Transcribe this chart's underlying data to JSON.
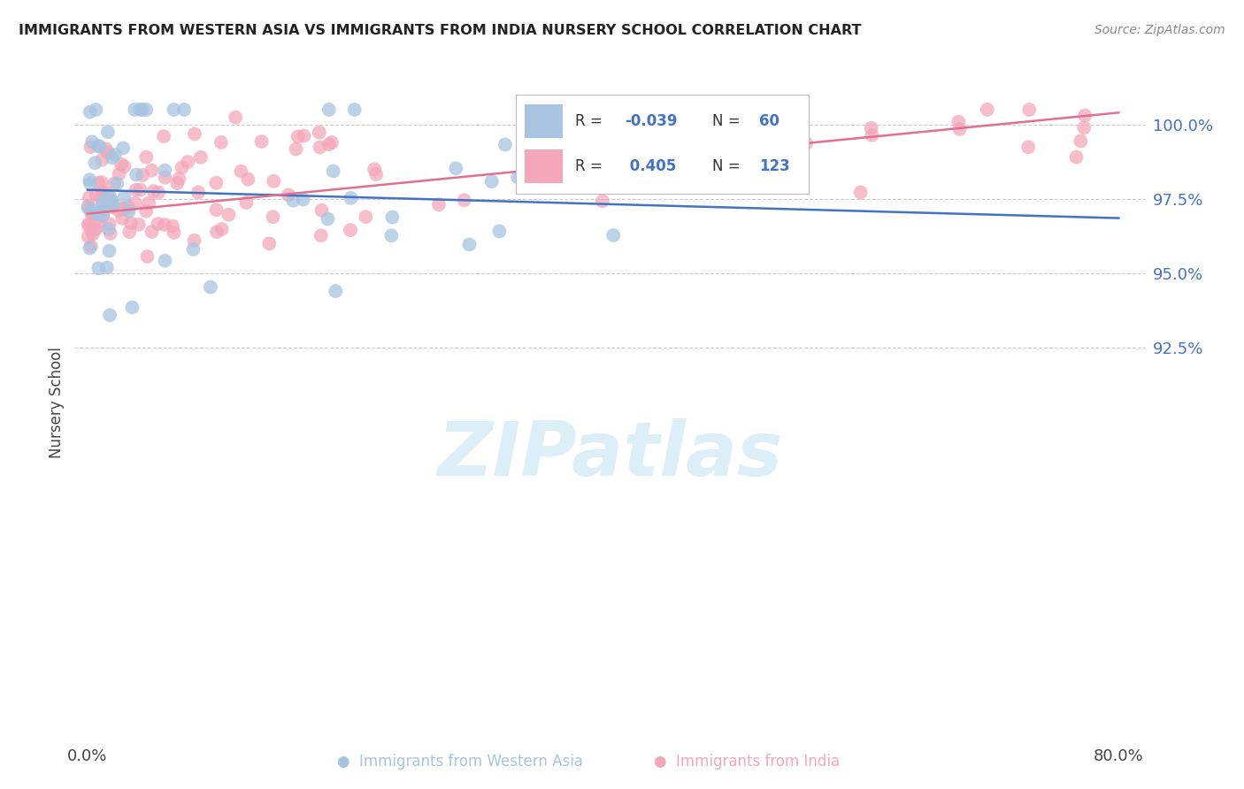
{
  "title": "IMMIGRANTS FROM WESTERN ASIA VS IMMIGRANTS FROM INDIA NURSERY SCHOOL CORRELATION CHART",
  "source": "Source: ZipAtlas.com",
  "ylabel": "Nursery School",
  "ytick_values": [
    100.0,
    97.5,
    95.0,
    92.5
  ],
  "ytick_labels": [
    "100.0%",
    "97.5%",
    "95.0%",
    "92.5%"
  ],
  "xlim": [
    -1,
    82
  ],
  "ylim": [
    79.5,
    101.8
  ],
  "legend_blue_r": "-0.039",
  "legend_blue_n": "60",
  "legend_pink_r": "0.405",
  "legend_pink_n": "123",
  "blue_color": "#a8c4e0",
  "pink_color": "#f4a7b9",
  "blue_line_color": "#4472c4",
  "pink_line_color": "#e07090",
  "watermark": "ZIPatlas",
  "watermark_color": "#dceef8",
  "blue_trend_x": [
    0,
    80
  ],
  "blue_trend_y0": 97.8,
  "blue_trend_y1": 96.85,
  "pink_trend_x": [
    0,
    80
  ],
  "pink_trend_y0": 97.0,
  "pink_trend_y1": 100.4
}
